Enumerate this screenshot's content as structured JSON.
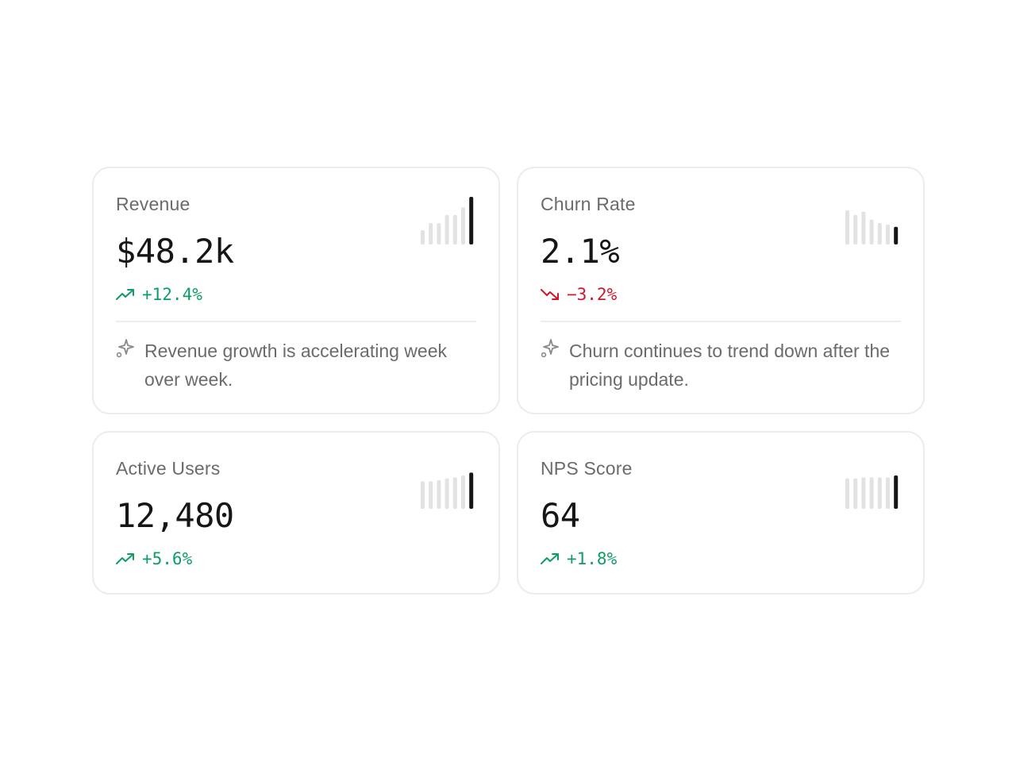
{
  "cards": [
    {
      "label": "Revenue",
      "value": "$48.2k",
      "delta": "+12.4%",
      "trend": "up",
      "insight": "Revenue growth is accelerating week over week.",
      "sparkline": [
        0.3,
        0.45,
        0.45,
        0.62,
        0.62,
        0.78,
        1.0
      ]
    },
    {
      "label": "Churn Rate",
      "value": "2.1%",
      "delta": "−3.2%",
      "trend": "down",
      "insight": "Churn continues to trend down after the pricing update.",
      "sparkline": [
        0.72,
        0.62,
        0.69,
        0.52,
        0.45,
        0.42,
        0.37
      ]
    },
    {
      "label": "Active Users",
      "value": "12,480",
      "delta": "+5.6%",
      "trend": "up",
      "sparkline": [
        0.58,
        0.58,
        0.6,
        0.64,
        0.66,
        0.7,
        0.76
      ]
    },
    {
      "label": "NPS Score",
      "value": "64",
      "delta": "+1.8%",
      "trend": "up",
      "sparkline": [
        0.64,
        0.64,
        0.66,
        0.66,
        0.66,
        0.66,
        0.7
      ]
    }
  ],
  "colors": {
    "up": "#0f9d65",
    "down": "#d0162c",
    "bar_muted": "#e2e2e2",
    "bar_current": "#161616",
    "card_border": "#ececec"
  },
  "icons": {
    "trend_up": "trending-up-icon",
    "trend_down": "trending-down-icon",
    "insight": "sparkle-icon"
  }
}
